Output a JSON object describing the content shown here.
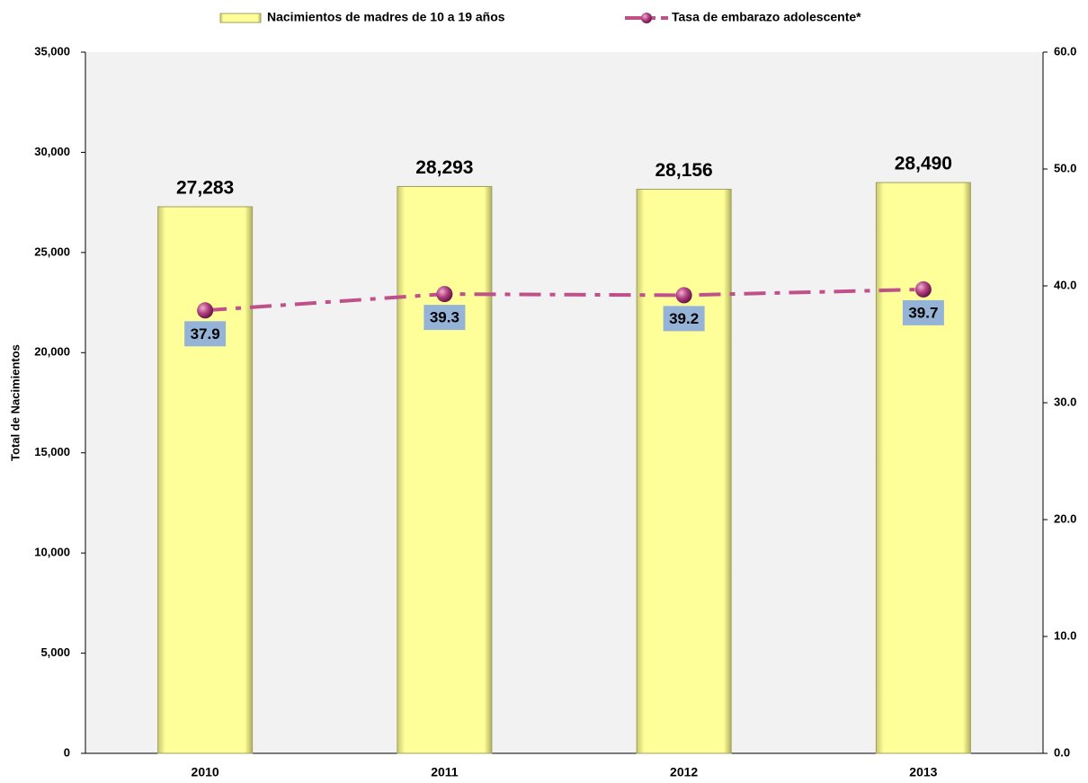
{
  "chart_data": {
    "type": "bar",
    "categories": [
      "2010",
      "2011",
      "2012",
      "2013"
    ],
    "series": [
      {
        "name": "Nacimientos de madres de 10 a 19 años",
        "type": "bar",
        "color": "#ffff99",
        "values": [
          27283,
          28293,
          28156,
          28490
        ],
        "value_labels": [
          "27,283",
          "28,293",
          "28,156",
          "28,490"
        ]
      },
      {
        "name": "Tasa de embarazo adolescente*",
        "type": "line",
        "axis": "y2",
        "color": "#c0508a",
        "values": [
          37.9,
          39.3,
          39.2,
          39.7
        ]
      }
    ],
    "ylabel": "Total de Nacimientos",
    "ylim": [
      0,
      35000
    ],
    "yticks": [
      0,
      {
        "value": 5000,
        "label": "5,000"
      },
      {
        "value": 10000,
        "label": "10,000"
      },
      {
        "value": 15000,
        "label": "15,000"
      },
      {
        "value": 20000,
        "label": "20,000"
      },
      {
        "value": 25000,
        "label": "25,000"
      },
      {
        "value": 30000,
        "label": "30,000"
      },
      {
        "value": 35000,
        "label": "35,000"
      }
    ],
    "y2lim": [
      0,
      60
    ],
    "y2ticks": [
      {
        "value": 0,
        "label": "0.0"
      },
      {
        "value": 10,
        "label": "10.0"
      },
      {
        "value": 20,
        "label": "20.0"
      },
      {
        "value": 30,
        "label": "30.0"
      },
      {
        "value": 40,
        "label": "40.0"
      },
      {
        "value": 50,
        "label": "50.0"
      },
      {
        "value": 60,
        "label": "60.0"
      }
    ],
    "legend": "top",
    "grid": false
  }
}
